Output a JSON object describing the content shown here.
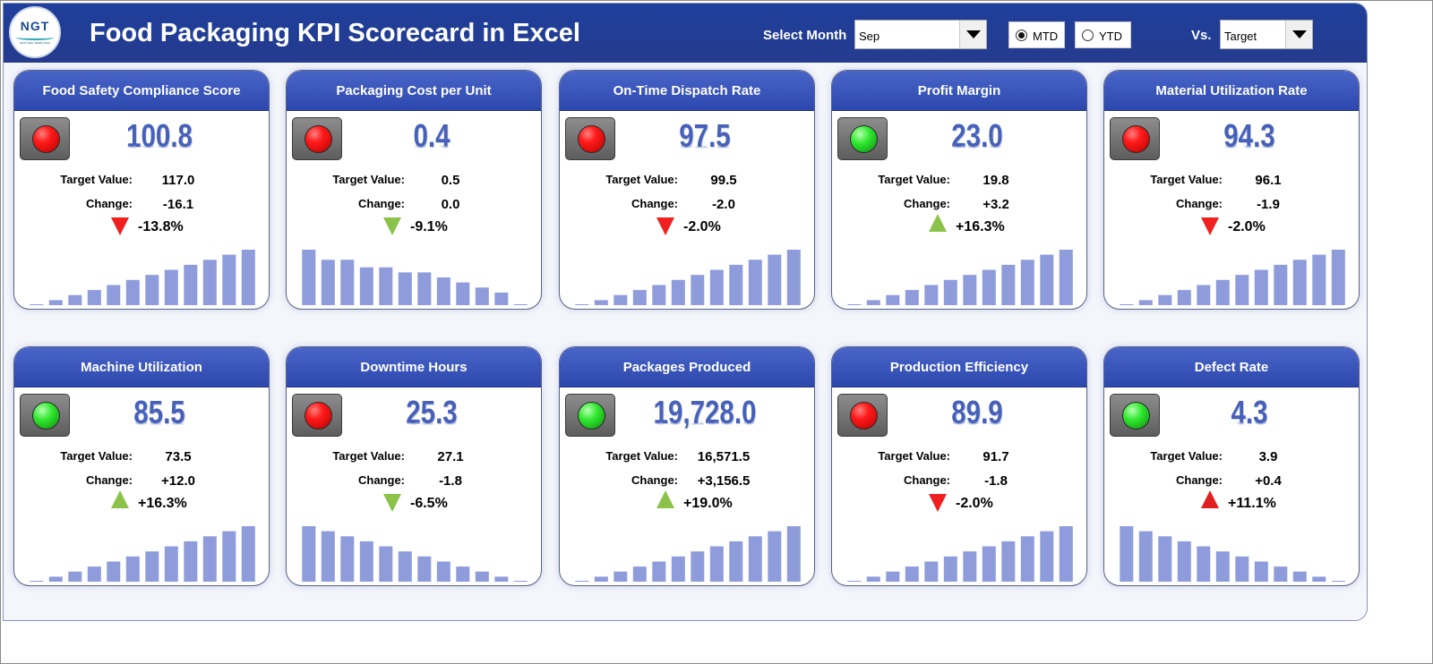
{
  "header": {
    "logo_text": "NGT",
    "logo_subtext": "NEXT GEN TEMPLATES",
    "title": "Food Packaging KPI Scorecard in Excel",
    "select_month_label": "Select Month",
    "month_value": "Sep",
    "mtd_label": "MTD",
    "ytd_label": "YTD",
    "mtd_selected": true,
    "vs_label": "Vs.",
    "vs_value": "Target"
  },
  "labels": {
    "target_value": "Target Value:",
    "change": "Change:"
  },
  "colors": {
    "header": "#253b8e",
    "card_header": "#3d57bd",
    "bars": "#8e9cdc",
    "value": "#4761b8",
    "red": "#f02020",
    "green": "#8bc34a"
  },
  "kpis": [
    {
      "title": "Food Safety Compliance Score",
      "light": "red",
      "value": "100.8",
      "target": "117.0",
      "change": "-16.1",
      "arrow": "down-red",
      "pct": "-13.8%",
      "bars": [
        0,
        2,
        4,
        6,
        8,
        10,
        12,
        14,
        16,
        18,
        20,
        22
      ]
    },
    {
      "title": "Packaging Cost per Unit",
      "light": "red",
      "value": "0.4",
      "target": "0.5",
      "change": "0.0",
      "arrow": "down-green",
      "pct": "-9.1%",
      "bars": [
        22,
        18,
        18,
        15,
        15,
        13,
        13,
        11,
        9,
        7,
        5,
        0
      ]
    },
    {
      "title": "On-Time Dispatch Rate",
      "light": "red",
      "value": "97.5",
      "target": "99.5",
      "change": "-2.0",
      "arrow": "down-red",
      "pct": "-2.0%",
      "bars": [
        0,
        2,
        4,
        6,
        8,
        10,
        12,
        14,
        16,
        18,
        20,
        22
      ]
    },
    {
      "title": "Profit Margin",
      "light": "green",
      "value": "23.0",
      "target": "19.8",
      "change": "+3.2",
      "arrow": "up-green",
      "pct": "+16.3%",
      "bars": [
        0,
        2,
        4,
        6,
        8,
        10,
        12,
        14,
        16,
        18,
        20,
        22
      ]
    },
    {
      "title": "Material Utilization Rate",
      "light": "red",
      "value": "94.3",
      "target": "96.1",
      "change": "-1.9",
      "arrow": "down-red",
      "pct": "-2.0%",
      "bars": [
        0,
        2,
        4,
        6,
        8,
        10,
        12,
        14,
        16,
        18,
        20,
        22
      ]
    },
    {
      "title": "Machine Utilization",
      "light": "green",
      "value": "85.5",
      "target": "73.5",
      "change": "+12.0",
      "arrow": "up-green",
      "pct": "+16.3%",
      "bars": [
        0,
        2,
        4,
        6,
        8,
        10,
        12,
        14,
        16,
        18,
        20,
        22
      ]
    },
    {
      "title": "Downtime Hours",
      "light": "red",
      "value": "25.3",
      "target": "27.1",
      "change": "-1.8",
      "arrow": "down-green",
      "pct": "-6.5%",
      "bars": [
        22,
        20,
        18,
        16,
        14,
        12,
        10,
        8,
        6,
        4,
        2,
        0
      ]
    },
    {
      "title": "Packages Produced",
      "light": "green",
      "value": "19,728.0",
      "target": "16,571.5",
      "change": "+3,156.5",
      "arrow": "up-green",
      "pct": "+19.0%",
      "bars": [
        0,
        2,
        4,
        6,
        8,
        10,
        12,
        14,
        16,
        18,
        20,
        22
      ]
    },
    {
      "title": "Production Efficiency",
      "light": "red",
      "value": "89.9",
      "target": "91.7",
      "change": "-1.8",
      "arrow": "down-red",
      "pct": "-2.0%",
      "bars": [
        0,
        2,
        4,
        6,
        8,
        10,
        12,
        14,
        16,
        18,
        20,
        22
      ]
    },
    {
      "title": "Defect Rate",
      "light": "green",
      "value": "4.3",
      "target": "3.9",
      "change": "+0.4",
      "arrow": "up-red",
      "pct": "+11.1%",
      "bars": [
        22,
        20,
        18,
        16,
        14,
        12,
        10,
        8,
        6,
        4,
        2,
        0
      ]
    }
  ]
}
